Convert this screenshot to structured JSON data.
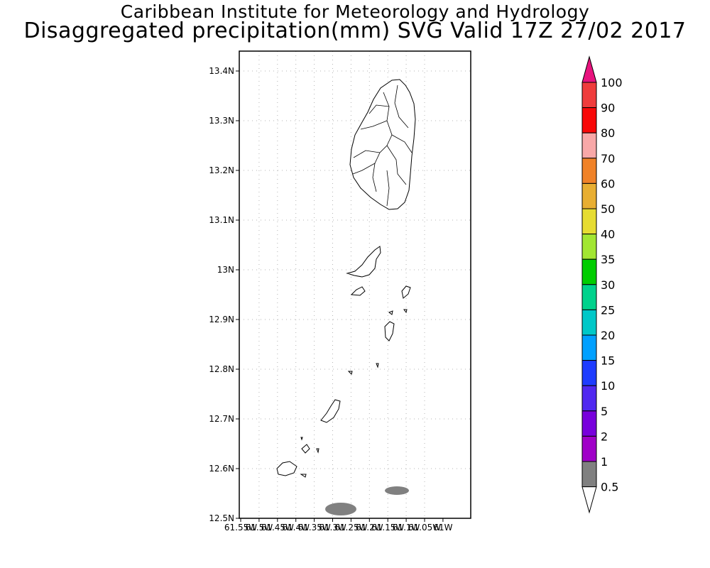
{
  "title": {
    "line1": "Caribbean Institute for Meteorology and Hydrology",
    "line2": "Disaggregated precipitation(mm) SVG Valid 17Z 27/02 2017"
  },
  "map": {
    "lon_range": [
      -61.55,
      -61.0
    ],
    "lat_range": [
      12.5,
      13.45
    ],
    "lon_ticks": [
      "61.55W",
      "61.5W",
      "61.45W",
      "61.4W",
      "61.35W",
      "61.3W",
      "61.25W",
      "61.2W",
      "61.15W",
      "61.1W",
      "61.05W",
      "61W"
    ],
    "lat_ticks": [
      "13.4N",
      "13.3N",
      "13.2N",
      "13.1N",
      "13N",
      "12.9N",
      "12.8N",
      "12.7N",
      "12.6N",
      "12.5N"
    ],
    "grid": true,
    "precip_areas": [
      {
        "name": "southwest-rain-patch",
        "level": "0.5-1",
        "lon": -61.29,
        "lat": 12.518
      },
      {
        "name": "southeast-rain-patch",
        "level": "0.5-1",
        "lon": -61.19,
        "lat": 12.557
      }
    ]
  },
  "colorbar": {
    "labels": [
      "100",
      "90",
      "80",
      "70",
      "60",
      "50",
      "40",
      "35",
      "30",
      "25",
      "20",
      "15",
      "10",
      "5",
      "2",
      "1",
      "0.5"
    ],
    "colors": [
      "#e8137e",
      "#ef3c3c",
      "#f80808",
      "#f8a8a8",
      "#f08228",
      "#e8ae32",
      "#e6dc32",
      "#a2e632",
      "#00cd00",
      "#00d28c",
      "#00c8c8",
      "#00a0ff",
      "#1e3cff",
      "#5028f0",
      "#7800dc",
      "#a000c8",
      "#808080"
    ]
  }
}
